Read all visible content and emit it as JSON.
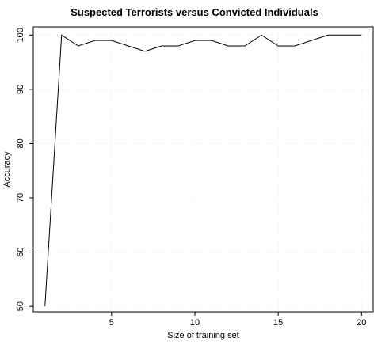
{
  "chart_data": {
    "type": "line",
    "title": "Suspected Terrorists versus Convicted Individuals",
    "xlabel": "Size of training set",
    "ylabel": "Accuracy",
    "x": [
      1,
      2,
      3,
      4,
      5,
      6,
      7,
      8,
      9,
      10,
      11,
      12,
      13,
      14,
      15,
      16,
      17,
      18,
      19,
      20
    ],
    "series": [
      {
        "values": [
          50,
          100,
          98,
          99,
          99,
          98,
          97,
          98,
          98,
          99,
          99,
          98,
          98,
          100,
          98,
          98,
          99,
          100,
          100,
          100
        ]
      }
    ],
    "xlim": [
      0.3,
      20.7
    ],
    "ylim": [
      49,
      101.5
    ],
    "xticks": [
      5,
      10,
      15,
      20
    ],
    "yticks": [
      50,
      60,
      70,
      80,
      90,
      100
    ],
    "xtick_labels": [
      "5",
      "10",
      "15",
      "20"
    ],
    "ytick_labels": [
      "50",
      "60",
      "70",
      "80",
      "90",
      "100"
    ],
    "grid": true,
    "legend": "none",
    "line_color": "#000000",
    "grid_color": "#ececec"
  }
}
